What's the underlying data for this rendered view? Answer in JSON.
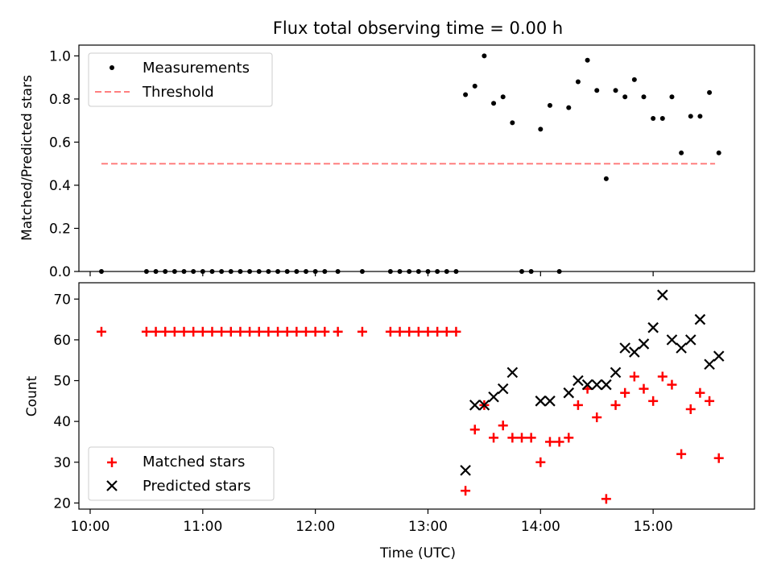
{
  "title": "Flux total observing time = 0.00 h",
  "chart_data": [
    {
      "type": "scatter",
      "ylabel": "Matched/Predicted stars",
      "xlabel": "",
      "x_axis_unit": "hours UTC",
      "xlim": [
        "09:54",
        "15:54"
      ],
      "ylim": [
        0,
        1.05
      ],
      "yticks": [
        0.0,
        0.2,
        0.4,
        0.6,
        0.8,
        1.0
      ],
      "ytick_labels": [
        "0.0",
        "0.2",
        "0.4",
        "0.6",
        "0.8",
        "1.0"
      ],
      "legend_position": "top-left",
      "grid": false,
      "series": [
        {
          "name": "Measurements",
          "marker": "dot",
          "color": "#000000",
          "x": [
            "10:06",
            "10:30",
            "10:35",
            "10:40",
            "10:45",
            "10:50",
            "10:55",
            "11:00",
            "11:05",
            "11:10",
            "11:15",
            "11:20",
            "11:25",
            "11:30",
            "11:35",
            "11:40",
            "11:45",
            "11:50",
            "11:55",
            "12:00",
            "12:05",
            "12:12",
            "12:25",
            "12:40",
            "12:45",
            "12:50",
            "12:55",
            "13:00",
            "13:05",
            "13:10",
            "13:15",
            "13:20",
            "13:25",
            "13:30",
            "13:35",
            "13:40",
            "13:45",
            "13:50",
            "13:55",
            "14:00",
            "14:05",
            "14:10",
            "14:15",
            "14:20",
            "14:25",
            "14:30",
            "14:35",
            "14:40",
            "14:45",
            "14:50",
            "14:55",
            "15:00",
            "15:05",
            "15:10",
            "15:15",
            "15:20",
            "15:25",
            "15:30",
            "15:35"
          ],
          "y": [
            0,
            0,
            0,
            0,
            0,
            0,
            0,
            0,
            0,
            0,
            0,
            0,
            0,
            0,
            0,
            0,
            0,
            0,
            0,
            0,
            0,
            0,
            0,
            0,
            0,
            0,
            0,
            0,
            0,
            0,
            0,
            0.82,
            0.86,
            1.0,
            0.78,
            0.81,
            0.69,
            0,
            0,
            0.66,
            0.77,
            0,
            0.76,
            0.88,
            0.98,
            0.84,
            0.43,
            0.84,
            0.81,
            0.89,
            0.81,
            0.71,
            0.71,
            0.81,
            0.55,
            0.72,
            0.72,
            0.83,
            0.55
          ]
        },
        {
          "name": "Threshold",
          "style": "dashed",
          "color": "#ff7f7f",
          "x": [
            "10:06",
            "15:33"
          ],
          "y": [
            0.5,
            0.5
          ]
        }
      ]
    },
    {
      "type": "scatter",
      "ylabel": "Count",
      "xlabel": "Time (UTC)",
      "x_axis_unit": "hours UTC",
      "xlim": [
        "09:54",
        "15:54"
      ],
      "ylim": [
        18.5,
        74
      ],
      "yticks": [
        20,
        30,
        40,
        50,
        60,
        70
      ],
      "ytick_labels": [
        "20",
        "30",
        "40",
        "50",
        "60",
        "70"
      ],
      "xticks": [
        "10:00",
        "11:00",
        "12:00",
        "13:00",
        "14:00",
        "15:00"
      ],
      "xtick_labels": [
        "10:00",
        "11:00",
        "12:00",
        "13:00",
        "14:00",
        "15:00"
      ],
      "legend_position": "bottom-left",
      "grid": false,
      "series": [
        {
          "name": "Matched stars",
          "marker": "plus",
          "color": "#ff0000",
          "x": [
            "10:06",
            "10:30",
            "10:35",
            "10:40",
            "10:45",
            "10:50",
            "10:55",
            "11:00",
            "11:05",
            "11:10",
            "11:15",
            "11:20",
            "11:25",
            "11:30",
            "11:35",
            "11:40",
            "11:45",
            "11:50",
            "11:55",
            "12:00",
            "12:05",
            "12:12",
            "12:25",
            "12:40",
            "12:45",
            "12:50",
            "12:55",
            "13:00",
            "13:05",
            "13:10",
            "13:15",
            "13:20",
            "13:25",
            "13:30",
            "13:35",
            "13:40",
            "13:45",
            "13:50",
            "13:55",
            "14:00",
            "14:05",
            "14:10",
            "14:15",
            "14:20",
            "14:25",
            "14:30",
            "14:35",
            "14:40",
            "14:45",
            "14:50",
            "14:55",
            "15:00",
            "15:05",
            "15:10",
            "15:15",
            "15:20",
            "15:25",
            "15:30",
            "15:35"
          ],
          "y": [
            62,
            62,
            62,
            62,
            62,
            62,
            62,
            62,
            62,
            62,
            62,
            62,
            62,
            62,
            62,
            62,
            62,
            62,
            62,
            62,
            62,
            62,
            62,
            62,
            62,
            62,
            62,
            62,
            62,
            62,
            62,
            23,
            38,
            44,
            36,
            39,
            36,
            36,
            36,
            30,
            35,
            35,
            36,
            44,
            48,
            41,
            21,
            44,
            47,
            51,
            48,
            45,
            51,
            49,
            32,
            43,
            47,
            45,
            31
          ]
        },
        {
          "name": "Predicted stars",
          "marker": "x",
          "color": "#000000",
          "x": [
            "13:20",
            "13:25",
            "13:30",
            "13:35",
            "13:40",
            "13:45",
            "14:00",
            "14:05",
            "14:15",
            "14:20",
            "14:25",
            "14:30",
            "14:35",
            "14:40",
            "14:45",
            "14:50",
            "14:55",
            "15:00",
            "15:05",
            "15:10",
            "15:15",
            "15:20",
            "15:25",
            "15:30",
            "15:35"
          ],
          "y": [
            28,
            44,
            44,
            46,
            48,
            52,
            45,
            45,
            47,
            50,
            49,
            49,
            49,
            52,
            58,
            57,
            59,
            63,
            71,
            60,
            58,
            60,
            65,
            54,
            56
          ]
        }
      ]
    }
  ]
}
